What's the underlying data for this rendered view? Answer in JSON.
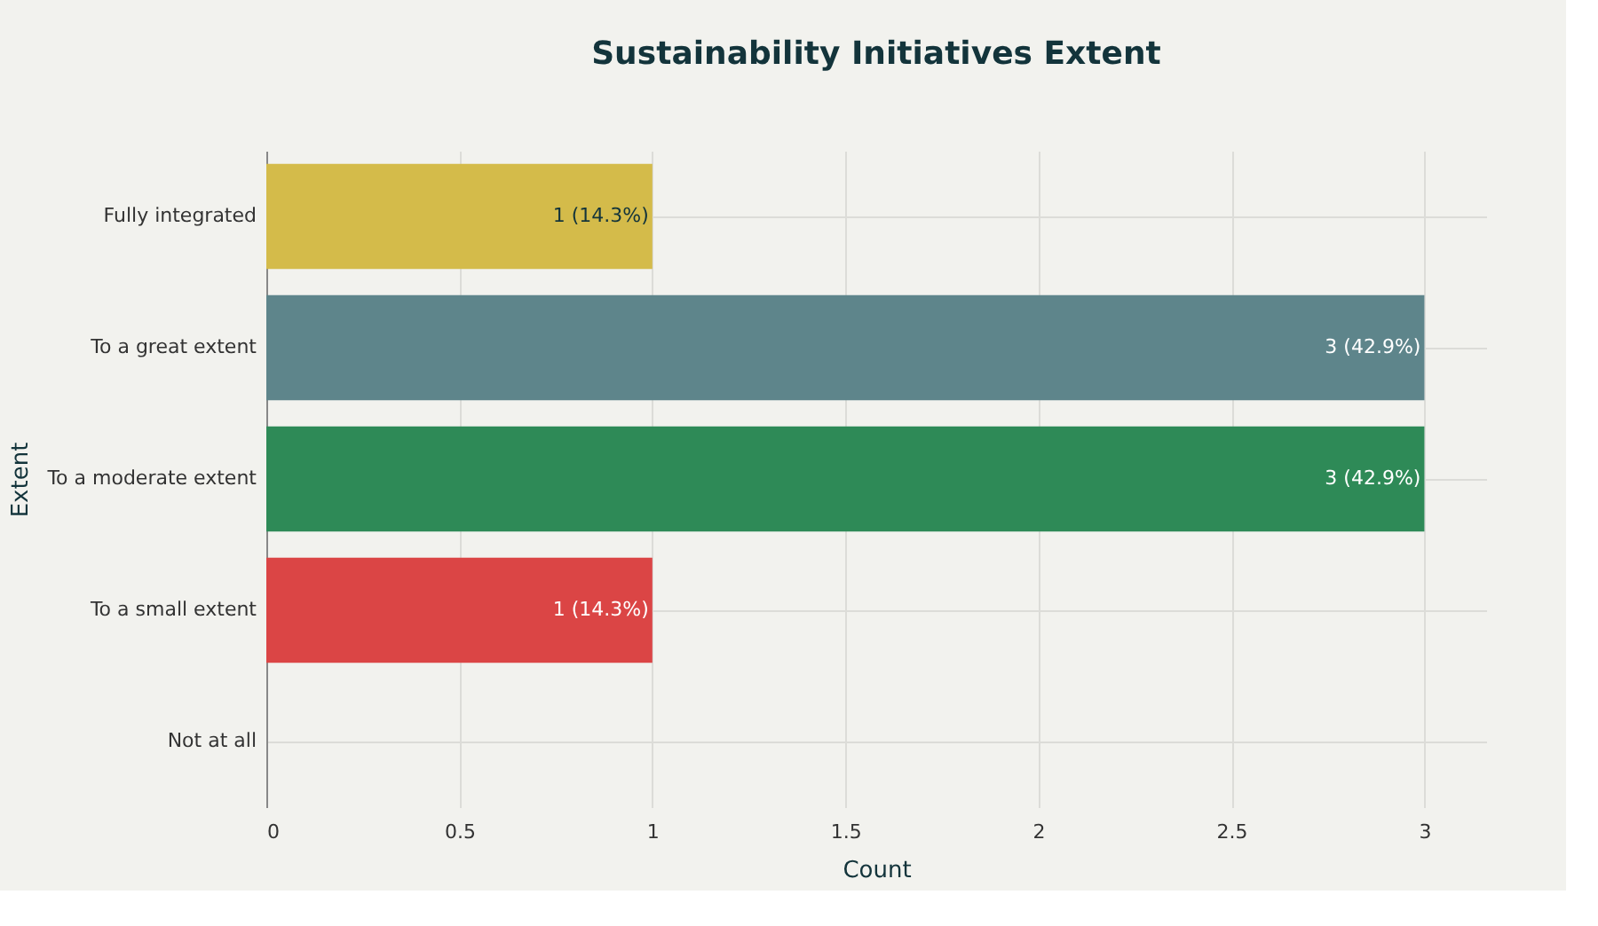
{
  "chart_data": {
    "type": "bar",
    "orientation": "horizontal",
    "title": "Sustainability Initiatives Extent",
    "xlabel": "Count",
    "ylabel": "Extent",
    "categories": [
      "Fully integrated",
      "To a great extent",
      "To a moderate extent",
      "To a small extent",
      "Not at all"
    ],
    "values": [
      1,
      3,
      3,
      1,
      0
    ],
    "colors": [
      "#d4bb4a",
      "#5e858b",
      "#2e8a57",
      "#db4545",
      "#999999"
    ],
    "value_labels": [
      "1 (14.3%)",
      "3 (42.9%)",
      "3 (42.9%)",
      "1 (14.3%)",
      null
    ],
    "xlim": [
      0,
      3.16
    ],
    "xticks": [
      0,
      0.5,
      1,
      1.5,
      2,
      2.5,
      3
    ],
    "grid": true
  }
}
